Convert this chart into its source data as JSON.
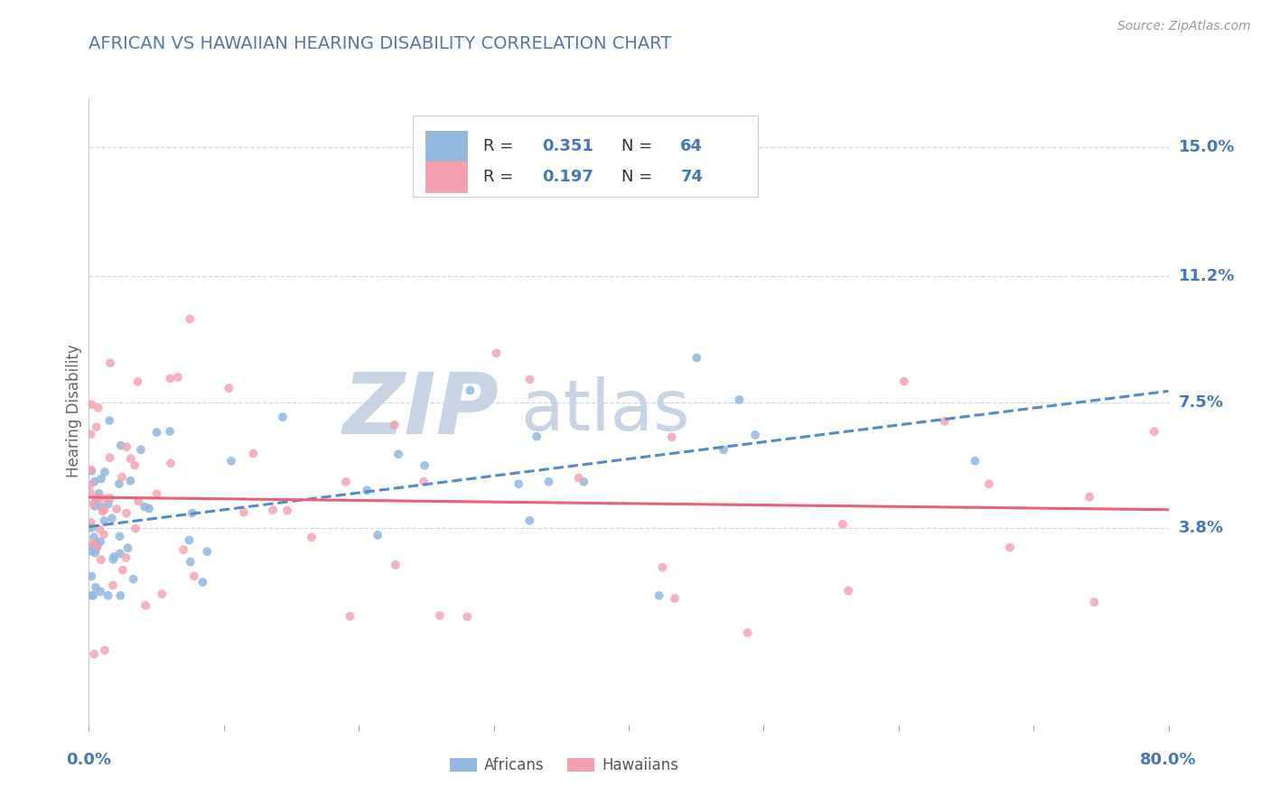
{
  "title": "AFRICAN VS HAWAIIAN HEARING DISABILITY CORRELATION CHART",
  "source": "Source: ZipAtlas.com",
  "ylabel": "Hearing Disability",
  "yticks": [
    0.038,
    0.075,
    0.112,
    0.15
  ],
  "ytick_labels": [
    "3.8%",
    "7.5%",
    "11.2%",
    "15.0%"
  ],
  "xlim": [
    0.0,
    0.8
  ],
  "ylim": [
    -0.02,
    0.165
  ],
  "africans_N": 64,
  "hawaiians_N": 74,
  "blue_color": "#92b8e0",
  "pink_color": "#f4a0b0",
  "blue_line_color": "#5588cc",
  "pink_line_color": "#e8607a",
  "title_color": "#5577aa",
  "axis_label_color": "#4477bb",
  "grid_color": "#c8d8e8",
  "watermark_zip_color": "#c8d4e4",
  "watermark_atlas_color": "#c8d4e4",
  "legend_box_color": "#ddddee",
  "africans_seed": 42,
  "hawaiians_seed": 77
}
